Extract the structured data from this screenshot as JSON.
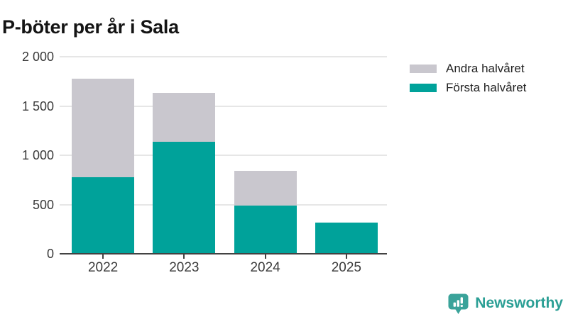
{
  "title": "P-böter per år i Sala",
  "chart_data": {
    "type": "bar",
    "stacked": true,
    "title": "P-böter per år i Sala",
    "categories": [
      "2022",
      "2023",
      "2024",
      "2025"
    ],
    "series": [
      {
        "name": "Första halvåret",
        "color": "#00a29a",
        "values": [
          780,
          1140,
          490,
          315
        ]
      },
      {
        "name": "Andra halvåret",
        "color": "#c9c7ce",
        "values": [
          1000,
          490,
          355,
          0
        ]
      }
    ],
    "totals": [
      1780,
      1630,
      845,
      315
    ],
    "xlabel": "",
    "ylabel": "",
    "ylim": [
      0,
      2000
    ],
    "y_ticks": {
      "values": [
        0,
        500,
        1000,
        1500,
        2000
      ],
      "labels": [
        "0",
        "500",
        "1 000",
        "1 500",
        "2 000"
      ]
    },
    "grid": true,
    "legend_position": "right-top"
  },
  "legend": {
    "items": [
      {
        "label": "Andra halvåret",
        "color": "#c9c7ce"
      },
      {
        "label": "Första halvåret",
        "color": "#00a29a"
      }
    ]
  },
  "footer": {
    "brand": "Newsworthy"
  },
  "colors": {
    "teal": "#00a29a",
    "gray": "#c9c7ce",
    "grid": "#e6e6e6",
    "axis": "#424242",
    "text": "#3a3a3a",
    "title": "#141414",
    "brand": "#2b9f95"
  }
}
